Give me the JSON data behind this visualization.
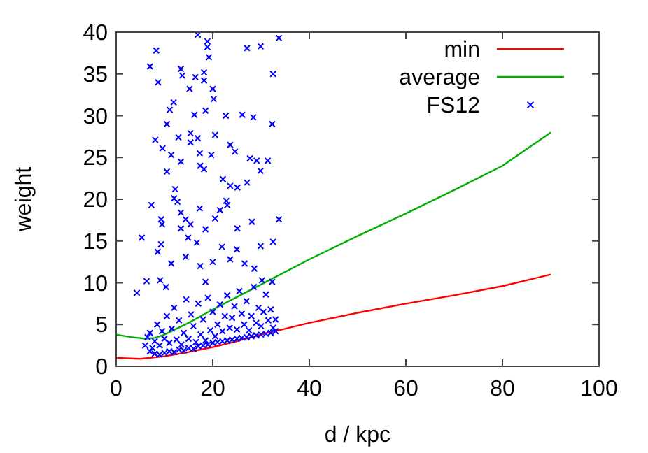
{
  "chart_data": {
    "type": "scatter",
    "xlabel": "d / kpc",
    "ylabel": "weight",
    "xlim": [
      0,
      100
    ],
    "ylim": [
      0,
      40
    ],
    "xticks": [
      0,
      20,
      40,
      60,
      80,
      100
    ],
    "yticks": [
      0,
      5,
      10,
      15,
      20,
      25,
      30,
      35,
      40
    ],
    "legend": "top right",
    "grid": false,
    "series": [
      {
        "name": "min",
        "type": "line",
        "color": "#ff0000",
        "x": [
          0,
          5,
          10,
          15,
          20,
          25,
          30,
          40,
          50,
          60,
          70,
          80,
          90
        ],
        "values": [
          1.0,
          0.9,
          1.2,
          1.7,
          2.3,
          3.0,
          3.8,
          5.2,
          6.4,
          7.5,
          8.5,
          9.6,
          11.0
        ]
      },
      {
        "name": "average",
        "type": "line",
        "color": "#00b000",
        "x": [
          0,
          3,
          6,
          8,
          10,
          15,
          20,
          25,
          30,
          40,
          50,
          60,
          70,
          80,
          90
        ],
        "values": [
          3.8,
          3.5,
          3.3,
          3.4,
          3.8,
          5.2,
          6.8,
          8.3,
          9.8,
          12.8,
          15.6,
          18.3,
          21.1,
          24.0,
          28.0
        ]
      },
      {
        "name": "FS12",
        "color": "#0000ff",
        "marker": "cross",
        "x": [
          33.7,
          16.9,
          18.9,
          18.9,
          19.2,
          8.3,
          7,
          8.7,
          27.1,
          29.9,
          32.5,
          13.4,
          13.7,
          18.2,
          18.2,
          16.4,
          15.2,
          20,
          20.2,
          11.9,
          11.1,
          10.5,
          16.2,
          18.5,
          22.7,
          26.1,
          28.4,
          32.3,
          20.5,
          12.9,
          15.4,
          16.9,
          15.4,
          8.1,
          9.6,
          11.4,
          19.7,
          17.3,
          23.6,
          24.6,
          27.7,
          29.1,
          31.4,
          13.4,
          10.5,
          17.4,
          18.2,
          29.9,
          22.1,
          23.6,
          25.1,
          27.1,
          12.2,
          12,
          12.7,
          22.8,
          23,
          21.5,
          7.3,
          17.3,
          13.4,
          14.4,
          15.4,
          20.5,
          9.3,
          9.5,
          28.1,
          33.7,
          25.1,
          13.4,
          18.5,
          14.9,
          5.3,
          16.7,
          9.3,
          21.9,
          25,
          29.9,
          32.5,
          8.6,
          14.4,
          23.6,
          11.4,
          17.4,
          26.6,
          20,
          28.6,
          6.3,
          9.1,
          4.3,
          10.3,
          18.5,
          32.3,
          30.2,
          6,
          6.5,
          7,
          7,
          7.5,
          8,
          8,
          8.5,
          9,
          9,
          9.5,
          10,
          10,
          10.5,
          11,
          11,
          11.5,
          12,
          12,
          12.5,
          13,
          13,
          13.5,
          14,
          14,
          14.5,
          15,
          15,
          15.5,
          16,
          16,
          16.5,
          17,
          17,
          17.5,
          18,
          18,
          18.5,
          19,
          19,
          19.5,
          20,
          20,
          20.5,
          21,
          21,
          21.5,
          22,
          22,
          22.5,
          23,
          23,
          23.5,
          24,
          24,
          24.5,
          25,
          25,
          25.5,
          26,
          26,
          26.5,
          27,
          27,
          27.5,
          28,
          28,
          28.5,
          29,
          29,
          29.5,
          30,
          30,
          30.5,
          31,
          31,
          31.5,
          32,
          32,
          32.5,
          33,
          33
        ],
        "values": [
          39.3,
          39.7,
          38.9,
          38.2,
          37,
          37.8,
          35.9,
          34,
          38.1,
          38.3,
          35,
          35.6,
          34.8,
          35.2,
          34.2,
          34.6,
          33.2,
          33.2,
          32,
          31.6,
          30.7,
          29,
          30.1,
          30.6,
          30,
          30.1,
          29.8,
          29,
          27.7,
          27.4,
          27.9,
          27.3,
          26.8,
          27.1,
          26.1,
          25.3,
          25.3,
          25.5,
          26.5,
          25.7,
          24.9,
          24.6,
          24.6,
          24.5,
          23.3,
          24,
          23.6,
          23.4,
          22.4,
          21.6,
          21.4,
          22,
          21.2,
          20.1,
          19.7,
          19.8,
          19.3,
          18.7,
          19.3,
          18.9,
          18.4,
          17.6,
          17,
          17.7,
          17.6,
          17,
          17.3,
          17.6,
          16.5,
          16.5,
          16.4,
          15.4,
          15.4,
          14.8,
          14.6,
          14.3,
          14,
          14.4,
          14.9,
          13.7,
          13.1,
          12.8,
          12.3,
          12,
          12.3,
          12.5,
          11.7,
          10.2,
          10.3,
          8.8,
          9.5,
          10.1,
          10.1,
          10.3,
          2.5,
          3.5,
          1.8,
          4,
          2.2,
          1.5,
          3,
          5,
          1.4,
          2.5,
          4.2,
          1.6,
          3.3,
          6,
          1.8,
          2.8,
          4.5,
          1.7,
          7,
          3.2,
          2,
          5.5,
          2.6,
          1.9,
          4,
          8,
          2.2,
          3.3,
          6.2,
          2.1,
          4.8,
          2.9,
          2.4,
          7.5,
          3.8,
          2.5,
          5.6,
          3.1,
          2.6,
          8.2,
          4.3,
          2.8,
          6.5,
          3.6,
          2.9,
          5,
          7.4,
          3,
          4.2,
          6,
          3.1,
          8.5,
          4.6,
          3.2,
          5.8,
          7.2,
          3.3,
          4.4,
          9,
          3.4,
          6.3,
          5,
          3.5,
          7.8,
          4.3,
          3.6,
          6,
          9.5,
          3.7,
          5.2,
          7,
          3.8,
          4.8,
          6.5,
          3.9,
          8.6,
          5.5,
          4,
          6.8,
          4.6,
          4.2,
          5.6
        ]
      }
    ]
  }
}
